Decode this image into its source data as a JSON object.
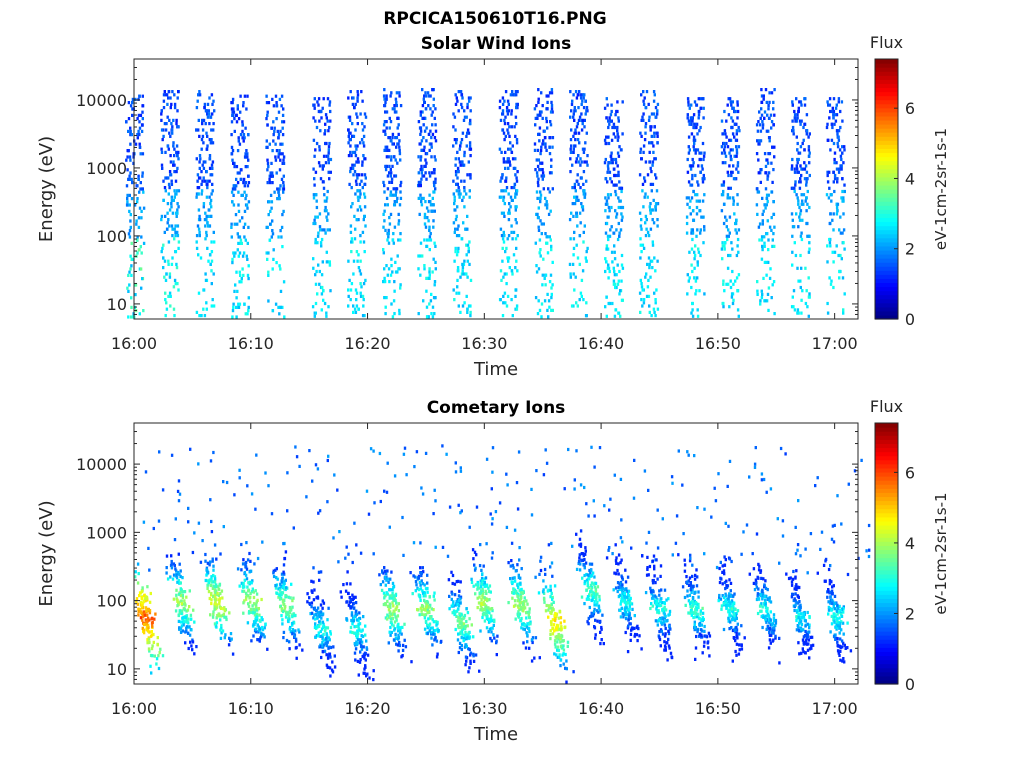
{
  "figure": {
    "title": "RPCICA150610T16.PNG"
  },
  "chart_data": [
    {
      "type": "heatmap",
      "title": "Solar Wind Ions",
      "xlabel": "Time",
      "ylabel": "Energy (eV)",
      "x_ticks": [
        "16:00",
        "16:10",
        "16:20",
        "16:30",
        "16:40",
        "16:50",
        "17:00"
      ],
      "x_range": [
        "16:00",
        "17:02"
      ],
      "y_scale": "log",
      "y_ticks": [
        "10",
        "100",
        "1000",
        "10000"
      ],
      "ylim": [
        6,
        40000
      ],
      "colorbar": {
        "title": "Flux",
        "label": "eV-1cm-2sr-1s-1",
        "ticks": [
          "0",
          "2",
          "4",
          "6"
        ],
        "range": [
          0,
          7.4
        ],
        "colormap": "jet"
      },
      "bursts": [
        {
          "t": "16:00",
          "e_hi": 12000,
          "peak_flux": 3.5
        },
        {
          "t": "16:03",
          "e_hi": 14000,
          "peak_flux": 3.0
        },
        {
          "t": "16:06",
          "e_hi": 14000,
          "peak_flux": 2.8
        },
        {
          "t": "16:09",
          "e_hi": 12000,
          "peak_flux": 2.8
        },
        {
          "t": "16:12",
          "e_hi": 12000,
          "peak_flux": 2.8
        },
        {
          "t": "16:16",
          "e_hi": 11000,
          "peak_flux": 2.8
        },
        {
          "t": "16:19",
          "e_hi": 14000,
          "peak_flux": 2.8
        },
        {
          "t": "16:22",
          "e_hi": 15000,
          "peak_flux": 2.8
        },
        {
          "t": "16:25",
          "e_hi": 15000,
          "peak_flux": 2.8
        },
        {
          "t": "16:28",
          "e_hi": 14000,
          "peak_flux": 2.8
        },
        {
          "t": "16:32",
          "e_hi": 14000,
          "peak_flux": 2.8
        },
        {
          "t": "16:35",
          "e_hi": 15000,
          "peak_flux": 2.8
        },
        {
          "t": "16:38",
          "e_hi": 14000,
          "peak_flux": 2.8
        },
        {
          "t": "16:41",
          "e_hi": 11000,
          "peak_flux": 2.8
        },
        {
          "t": "16:44",
          "e_hi": 14000,
          "peak_flux": 2.8
        },
        {
          "t": "16:48",
          "e_hi": 11000,
          "peak_flux": 2.8
        },
        {
          "t": "16:51",
          "e_hi": 11000,
          "peak_flux": 2.8
        },
        {
          "t": "16:54",
          "e_hi": 15000,
          "peak_flux": 2.8
        },
        {
          "t": "16:57",
          "e_hi": 11000,
          "peak_flux": 2.8
        },
        {
          "t": "17:00",
          "e_hi": 11000,
          "peak_flux": 2.8
        }
      ]
    },
    {
      "type": "heatmap",
      "title": "Cometary Ions",
      "xlabel": "Time",
      "ylabel": "Energy (eV)",
      "x_ticks": [
        "16:00",
        "16:10",
        "16:20",
        "16:30",
        "16:40",
        "16:50",
        "17:00"
      ],
      "x_range": [
        "16:00",
        "17:02"
      ],
      "y_scale": "log",
      "y_ticks": [
        "10",
        "100",
        "1000",
        "10000"
      ],
      "ylim": [
        6,
        40000
      ],
      "colorbar": {
        "title": "Flux",
        "label": "eV-1cm-2sr-1s-1",
        "ticks": [
          "0",
          "2",
          "4",
          "6"
        ],
        "range": [
          0,
          7.4
        ],
        "colormap": "jet"
      },
      "bursts": [
        {
          "t": "16:01",
          "e_center": 60,
          "peak_flux": 6.2
        },
        {
          "t": "16:04",
          "e_center": 100,
          "peak_flux": 4.4
        },
        {
          "t": "16:07",
          "e_center": 100,
          "peak_flux": 4.8
        },
        {
          "t": "16:10",
          "e_center": 100,
          "peak_flux": 4.4
        },
        {
          "t": "16:13",
          "e_center": 90,
          "peak_flux": 4.2
        },
        {
          "t": "16:16",
          "e_center": 40,
          "peak_flux": 3.4
        },
        {
          "t": "16:19",
          "e_center": 40,
          "peak_flux": 3.4
        },
        {
          "t": "16:22",
          "e_center": 80,
          "peak_flux": 4.4
        },
        {
          "t": "16:25",
          "e_center": 80,
          "peak_flux": 4.2
        },
        {
          "t": "16:28",
          "e_center": 50,
          "peak_flux": 4.0
        },
        {
          "t": "16:30",
          "e_center": 100,
          "peak_flux": 4.4
        },
        {
          "t": "16:33",
          "e_center": 90,
          "peak_flux": 4.4
        },
        {
          "t": "16:36",
          "e_center": 50,
          "peak_flux": 5.2
        },
        {
          "t": "16:39",
          "e_center": 150,
          "peak_flux": 3.8
        },
        {
          "t": "16:42",
          "e_center": 100,
          "peak_flux": 3.4
        },
        {
          "t": "16:45",
          "e_center": 80,
          "peak_flux": 3.4
        },
        {
          "t": "16:48",
          "e_center": 80,
          "peak_flux": 3.6
        },
        {
          "t": "16:51",
          "e_center": 80,
          "peak_flux": 3.4
        },
        {
          "t": "16:54",
          "e_center": 80,
          "peak_flux": 3.4
        },
        {
          "t": "16:57",
          "e_center": 60,
          "peak_flux": 3.2
        },
        {
          "t": "17:00",
          "e_center": 60,
          "peak_flux": 3.4
        }
      ]
    }
  ]
}
